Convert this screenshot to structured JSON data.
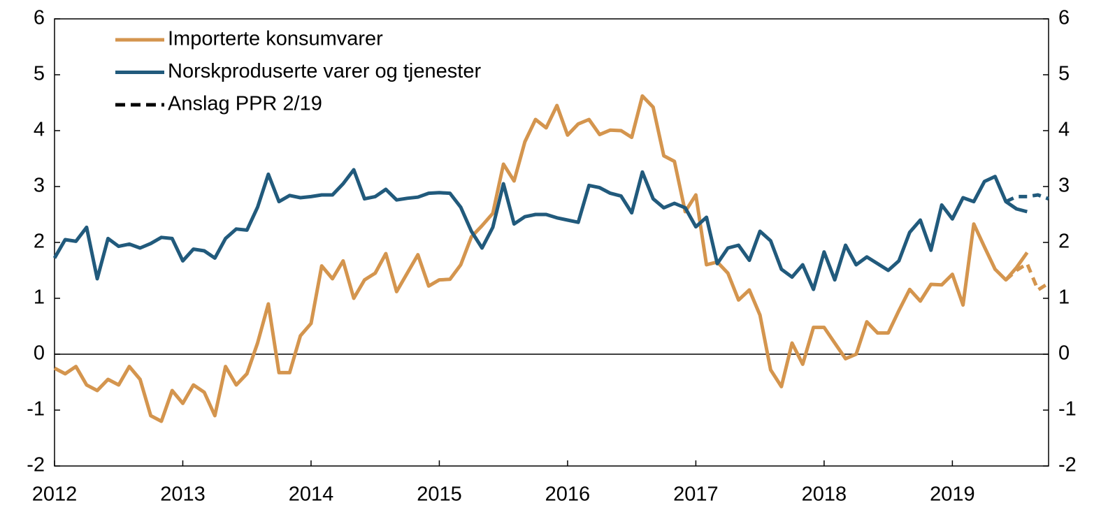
{
  "chart_data": {
    "type": "line",
    "x": [
      2012,
      2012.083,
      2012.167,
      2012.25,
      2012.333,
      2012.417,
      2012.5,
      2012.583,
      2012.667,
      2012.75,
      2012.833,
      2012.917,
      2013,
      2013.083,
      2013.167,
      2013.25,
      2013.333,
      2013.417,
      2013.5,
      2013.583,
      2013.667,
      2013.75,
      2013.833,
      2013.917,
      2014,
      2014.083,
      2014.167,
      2014.25,
      2014.333,
      2014.417,
      2014.5,
      2014.583,
      2014.667,
      2014.75,
      2014.833,
      2014.917,
      2015,
      2015.083,
      2015.167,
      2015.25,
      2015.333,
      2015.417,
      2015.5,
      2015.583,
      2015.667,
      2015.75,
      2015.833,
      2015.917,
      2016,
      2016.083,
      2016.167,
      2016.25,
      2016.333,
      2016.417,
      2016.5,
      2016.583,
      2016.667,
      2016.75,
      2016.833,
      2016.917,
      2017,
      2017.083,
      2017.167,
      2017.25,
      2017.333,
      2017.417,
      2017.5,
      2017.583,
      2017.667,
      2017.75,
      2017.833,
      2017.917,
      2018,
      2018.083,
      2018.167,
      2018.25,
      2018.333,
      2018.417,
      2018.5,
      2018.583,
      2018.667,
      2018.75,
      2018.833,
      2018.917,
      2019,
      2019.083,
      2019.167,
      2019.25,
      2019.333,
      2019.417,
      2019.5,
      2019.583
    ],
    "series": [
      {
        "name": "Importerte konsumvarer",
        "color": "#d4954e",
        "values": [
          -0.25,
          -0.35,
          -0.22,
          -0.55,
          -0.65,
          -0.45,
          -0.55,
          -0.22,
          -0.45,
          -1.1,
          -1.2,
          -0.65,
          -0.88,
          -0.55,
          -0.68,
          -1.1,
          -0.22,
          -0.55,
          -0.35,
          0.2,
          0.9,
          -0.33,
          -0.33,
          0.33,
          0.55,
          1.58,
          1.35,
          1.67,
          1.0,
          1.33,
          1.45,
          1.8,
          1.12,
          1.45,
          1.78,
          1.22,
          1.33,
          1.34,
          1.6,
          2.1,
          2.3,
          2.52,
          3.4,
          3.1,
          3.8,
          4.2,
          4.05,
          4.45,
          3.92,
          4.12,
          4.2,
          3.93,
          4.01,
          4.0,
          3.88,
          4.62,
          4.42,
          3.55,
          3.45,
          2.55,
          2.85,
          1.6,
          1.65,
          1.45,
          0.97,
          1.15,
          0.7,
          -0.28,
          -0.58,
          0.2,
          -0.18,
          0.48,
          0.48,
          0.2,
          -0.08,
          0.0,
          0.58,
          0.38,
          0.38,
          0.78,
          1.16,
          0.95,
          1.25,
          1.24,
          1.43,
          0.88,
          2.33,
          1.92,
          1.52,
          1.33,
          1.55,
          1.82
        ],
        "forecast_values": [
          1.33,
          1.5,
          1.62,
          1.15,
          1.27
        ]
      },
      {
        "name": "Norskproduserte varer og tjenester",
        "color": "#215a7c",
        "values": [
          1.72,
          2.05,
          2.02,
          2.27,
          1.35,
          2.07,
          1.93,
          1.97,
          1.9,
          1.98,
          2.09,
          2.07,
          1.67,
          1.88,
          1.85,
          1.72,
          2.07,
          2.24,
          2.22,
          2.63,
          3.22,
          2.73,
          2.84,
          2.8,
          2.82,
          2.85,
          2.85,
          3.05,
          3.3,
          2.78,
          2.82,
          2.95,
          2.76,
          2.79,
          2.81,
          2.88,
          2.89,
          2.88,
          2.63,
          2.2,
          1.9,
          2.27,
          3.05,
          2.33,
          2.46,
          2.5,
          2.5,
          2.44,
          2.4,
          2.36,
          3.02,
          2.98,
          2.88,
          2.83,
          2.53,
          3.26,
          2.78,
          2.62,
          2.7,
          2.62,
          2.28,
          2.45,
          1.62,
          1.9,
          1.95,
          1.68,
          2.2,
          2.03,
          1.52,
          1.38,
          1.6,
          1.16,
          1.83,
          1.33,
          1.95,
          1.6,
          1.74,
          1.62,
          1.5,
          1.67,
          2.18,
          2.4,
          1.86,
          2.67,
          2.42,
          2.8,
          2.73,
          3.09,
          3.18,
          2.73,
          2.6,
          2.55
        ],
        "forecast_values": [
          2.73,
          2.82,
          2.82,
          2.85,
          2.78
        ]
      }
    ],
    "forecast_x": [
      2019.417,
      2019.5,
      2019.583,
      2019.667,
      2019.75
    ],
    "forecast_legend": {
      "name": "Anslag PPR 2/19",
      "color": "#000000"
    },
    "xlim": [
      2012,
      2019.75
    ],
    "xticks": [
      2012,
      2013,
      2014,
      2015,
      2016,
      2017,
      2018,
      2019
    ],
    "ylim": [
      -2,
      6
    ],
    "yticks": [
      -2,
      -1,
      0,
      1,
      2,
      3,
      4,
      5,
      6
    ],
    "y2lim": [
      -2,
      6
    ],
    "y2ticks": [
      -2,
      -1,
      0,
      1,
      2,
      3,
      4,
      5,
      6
    ],
    "legend": "upper-left"
  }
}
